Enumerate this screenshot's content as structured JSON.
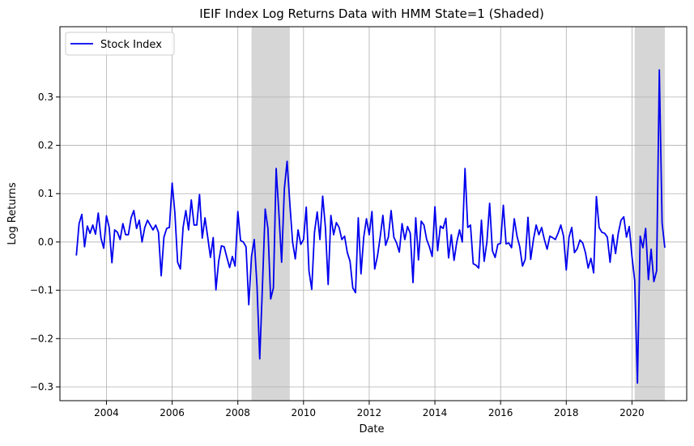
{
  "chart_data": {
    "type": "line",
    "title": "IEIF Index Log Returns Data with HMM State=1 (Shaded)",
    "xlabel": "Date",
    "ylabel": "Log Returns",
    "xlim": [
      "2002-08",
      "2021-09"
    ],
    "ylim": [
      -0.3,
      0.35
    ],
    "x_ticks": [
      "2004",
      "2006",
      "2008",
      "2010",
      "2012",
      "2014",
      "2016",
      "2018",
      "2020"
    ],
    "y_ticks": [
      "0.3",
      "0.2",
      "0.1",
      "0.0",
      "−0.1",
      "−0.2",
      "−0.3"
    ],
    "grid": true,
    "legend": {
      "position": "top-left",
      "entries": [
        "Stock Index"
      ]
    },
    "colors": {
      "series": "#0000ee",
      "shade": "#d6d6d6",
      "grid": "#b0b0b0"
    },
    "shaded_regions": [
      {
        "state": 1,
        "start": "2008-06",
        "end": "2009-08"
      },
      {
        "state": 1,
        "start": "2020-02",
        "end": "2021-01"
      }
    ],
    "series": [
      {
        "name": "Stock Index",
        "start": "2003-02",
        "frequency": "monthly",
        "values": [
          -0.028,
          0.038,
          0.057,
          -0.01,
          0.033,
          0.018,
          0.035,
          0.016,
          0.06,
          0.008,
          -0.013,
          0.054,
          0.03,
          -0.043,
          0.025,
          0.02,
          0.005,
          0.038,
          0.015,
          0.015,
          0.05,
          0.065,
          0.028,
          0.045,
          0.0,
          0.03,
          0.045,
          0.035,
          0.025,
          0.035,
          0.02,
          -0.07,
          0.01,
          0.028,
          0.03,
          0.122,
          0.06,
          -0.042,
          -0.056,
          0.03,
          0.065,
          0.025,
          0.087,
          0.035,
          0.035,
          0.098,
          0.008,
          0.05,
          0.01,
          -0.032,
          0.009,
          -0.099,
          -0.04,
          -0.008,
          -0.01,
          -0.032,
          -0.053,
          -0.03,
          -0.05,
          0.063,
          0.003,
          0.0,
          -0.01,
          -0.13,
          -0.03,
          0.005,
          -0.09,
          -0.242,
          -0.09,
          0.068,
          0.028,
          -0.118,
          -0.095,
          0.152,
          0.06,
          -0.042,
          0.11,
          0.167,
          0.08,
          0.0,
          -0.035,
          0.025,
          -0.005,
          0.005,
          0.072,
          -0.06,
          -0.098,
          0.02,
          0.062,
          0.005,
          0.095,
          0.03,
          -0.088,
          0.055,
          0.015,
          0.04,
          0.03,
          0.005,
          0.012,
          -0.022,
          -0.04,
          -0.095,
          -0.105,
          0.05,
          -0.066,
          0.01,
          0.048,
          0.015,
          0.063,
          -0.056,
          -0.03,
          0.01,
          0.055,
          -0.007,
          0.01,
          0.065,
          0.01,
          -0.002,
          -0.021,
          0.038,
          0.005,
          0.032,
          0.018,
          -0.084,
          0.05,
          -0.037,
          0.043,
          0.035,
          0.005,
          -0.01,
          -0.03,
          0.073,
          -0.018,
          0.033,
          0.028,
          0.049,
          -0.033,
          0.015,
          -0.038,
          0.0,
          0.025,
          0.0,
          0.152,
          0.03,
          0.035,
          -0.045,
          -0.048,
          -0.054,
          0.045,
          -0.04,
          0.0,
          0.08,
          -0.018,
          -0.032,
          -0.005,
          -0.003,
          0.076,
          -0.004,
          -0.002,
          -0.012,
          0.048,
          0.012,
          -0.01,
          -0.05,
          -0.036,
          0.051,
          -0.036,
          0.005,
          0.035,
          0.015,
          0.03,
          0.005,
          -0.015,
          0.012,
          0.009,
          0.005,
          0.018,
          0.035,
          0.012,
          -0.058,
          0.01,
          0.03,
          -0.022,
          -0.014,
          0.004,
          -0.002,
          -0.022,
          -0.054,
          -0.034,
          -0.064,
          0.094,
          0.03,
          0.02,
          0.018,
          0.01,
          -0.042,
          0.015,
          -0.024,
          0.018,
          0.045,
          0.052,
          0.01,
          0.032,
          -0.03,
          -0.08,
          -0.292,
          0.012,
          -0.012,
          0.028,
          -0.078,
          -0.015,
          -0.082,
          -0.06,
          0.356,
          0.04,
          -0.012
        ]
      }
    ]
  }
}
